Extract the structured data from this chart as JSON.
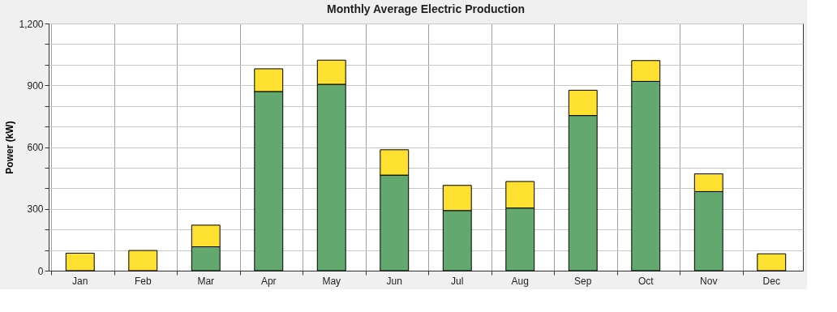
{
  "chart_data": {
    "type": "bar",
    "title": "Monthly Average Electric Production",
    "ylabel": "Power (kW)",
    "categories": [
      "Jan",
      "Feb",
      "Mar",
      "Apr",
      "May",
      "Jun",
      "Jul",
      "Aug",
      "Sep",
      "Oct",
      "Nov",
      "Dec"
    ],
    "stacked": true,
    "series": [
      {
        "color": "#63a86f",
        "values": [
          0,
          0,
          116,
          870,
          905,
          464,
          292,
          304,
          753,
          919,
          384,
          0
        ]
      },
      {
        "color": "#fde030",
        "values": [
          85,
          98,
          105,
          110,
          117,
          123,
          122,
          129,
          123,
          101,
          86,
          82
        ]
      }
    ],
    "ylim": [
      0,
      1200
    ],
    "yticks": [
      0,
      {
        "value": 100,
        "label": null
      },
      {
        "value": 200,
        "label": null
      },
      300,
      {
        "value": 400,
        "label": null
      },
      {
        "value": 500,
        "label": null
      },
      600,
      {
        "value": 700,
        "label": null
      },
      {
        "value": 800,
        "label": null
      },
      900,
      {
        "value": 1000,
        "label": null
      },
      {
        "value": 1100,
        "label": null
      },
      {
        "value": 1200,
        "label": "1,200"
      }
    ],
    "grid": true,
    "legend": false
  }
}
